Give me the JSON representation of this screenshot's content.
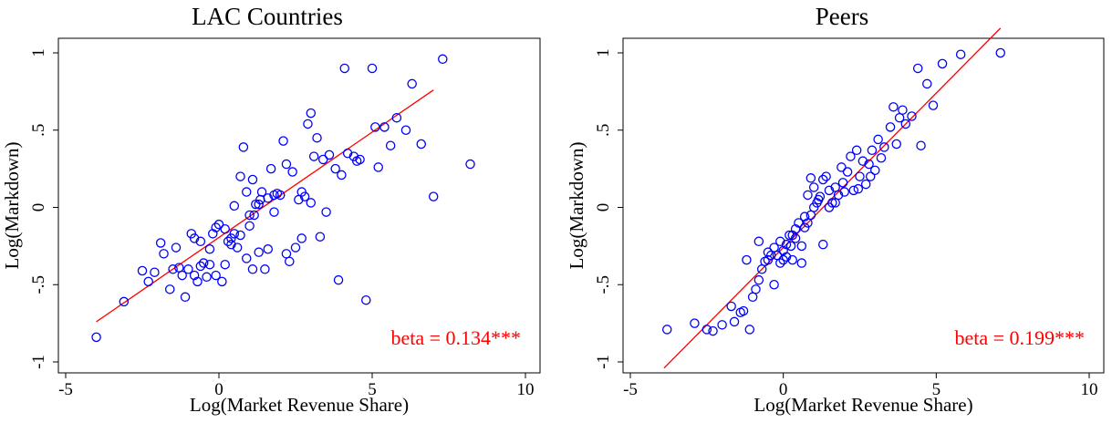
{
  "chart_data": [
    {
      "type": "scatter",
      "title": "LAC Countries",
      "xlabel": "Log(Market Revenue Share)",
      "ylabel": "Log(Markdown)",
      "xlim": [
        -5,
        10
      ],
      "ylim": [
        -1,
        1
      ],
      "xticks": [
        "-5",
        "0",
        "5",
        "10"
      ],
      "yticks": [
        "-1",
        "-.5",
        "0",
        ".5",
        "1"
      ],
      "annotation": "beta = 0.134***",
      "marker_color": "#0000ff",
      "line_color": "#ff0000",
      "fit_line": {
        "x": [
          -4.0,
          7.0
        ],
        "y": [
          -0.74,
          0.76
        ]
      },
      "points": [
        [
          -4.0,
          -0.84
        ],
        [
          -3.1,
          -0.61
        ],
        [
          -2.5,
          -0.41
        ],
        [
          -2.3,
          -0.48
        ],
        [
          -2.1,
          -0.42
        ],
        [
          -1.9,
          -0.23
        ],
        [
          -1.8,
          -0.3
        ],
        [
          -1.6,
          -0.53
        ],
        [
          -1.5,
          -0.4
        ],
        [
          -1.4,
          -0.26
        ],
        [
          -1.3,
          -0.39
        ],
        [
          -1.2,
          -0.44
        ],
        [
          -1.1,
          -0.58
        ],
        [
          -1.0,
          -0.4
        ],
        [
          -0.9,
          -0.17
        ],
        [
          -0.8,
          -0.2
        ],
        [
          -0.8,
          -0.44
        ],
        [
          -0.7,
          -0.48
        ],
        [
          -0.6,
          -0.22
        ],
        [
          -0.6,
          -0.38
        ],
        [
          -0.5,
          -0.36
        ],
        [
          -0.4,
          -0.45
        ],
        [
          -0.3,
          -0.37
        ],
        [
          -0.3,
          -0.27
        ],
        [
          -0.2,
          -0.17
        ],
        [
          -0.1,
          -0.13
        ],
        [
          -0.1,
          -0.44
        ],
        [
          0.0,
          -0.11
        ],
        [
          0.1,
          -0.48
        ],
        [
          0.2,
          -0.14
        ],
        [
          0.2,
          -0.37
        ],
        [
          0.3,
          -0.22
        ],
        [
          0.4,
          -0.24
        ],
        [
          0.4,
          -0.2
        ],
        [
          0.5,
          0.01
        ],
        [
          0.5,
          -0.17
        ],
        [
          0.6,
          -0.26
        ],
        [
          0.7,
          0.2
        ],
        [
          0.7,
          -0.18
        ],
        [
          0.8,
          0.39
        ],
        [
          0.9,
          -0.33
        ],
        [
          0.9,
          0.1
        ],
        [
          1.0,
          -0.05
        ],
        [
          1.0,
          -0.12
        ],
        [
          1.1,
          0.18
        ],
        [
          1.1,
          -0.4
        ],
        [
          1.2,
          0.02
        ],
        [
          1.3,
          -0.29
        ],
        [
          1.3,
          0.02
        ],
        [
          1.4,
          0.1
        ],
        [
          1.5,
          -0.4
        ],
        [
          1.6,
          0.06
        ],
        [
          1.6,
          -0.27
        ],
        [
          1.7,
          0.25
        ],
        [
          1.8,
          -0.03
        ],
        [
          1.8,
          0.08
        ],
        [
          1.9,
          0.09
        ],
        [
          2.0,
          0.08
        ],
        [
          2.1,
          0.43
        ],
        [
          2.2,
          -0.3
        ],
        [
          2.2,
          0.28
        ],
        [
          2.3,
          -0.35
        ],
        [
          2.4,
          0.23
        ],
        [
          2.5,
          -0.26
        ],
        [
          2.6,
          0.05
        ],
        [
          2.7,
          -0.2
        ],
        [
          2.8,
          0.07
        ],
        [
          2.9,
          0.54
        ],
        [
          3.0,
          0.61
        ],
        [
          3.0,
          0.03
        ],
        [
          3.1,
          0.33
        ],
        [
          3.2,
          0.45
        ],
        [
          3.3,
          -0.19
        ],
        [
          3.4,
          0.31
        ],
        [
          3.5,
          -0.03
        ],
        [
          3.6,
          0.34
        ],
        [
          3.8,
          0.25
        ],
        [
          3.9,
          -0.47
        ],
        [
          4.0,
          0.21
        ],
        [
          4.1,
          0.9
        ],
        [
          4.2,
          0.35
        ],
        [
          4.4,
          0.33
        ],
        [
          4.5,
          0.3
        ],
        [
          4.6,
          0.31
        ],
        [
          4.8,
          -0.6
        ],
        [
          5.0,
          0.9
        ],
        [
          5.1,
          0.52
        ],
        [
          5.2,
          0.26
        ],
        [
          5.4,
          0.52
        ],
        [
          5.6,
          0.4
        ],
        [
          5.8,
          0.58
        ],
        [
          6.1,
          0.5
        ],
        [
          6.3,
          0.8
        ],
        [
          6.6,
          0.41
        ],
        [
          7.0,
          0.07
        ],
        [
          7.3,
          0.96
        ],
        [
          8.2,
          0.28
        ],
        [
          1.15,
          -0.05
        ],
        [
          1.35,
          0.05
        ],
        [
          2.7,
          0.1
        ]
      ]
    },
    {
      "type": "scatter",
      "title": "Peers",
      "xlabel": "Log(Market Revenue Share)",
      "ylabel": "Log(Markdown)",
      "xlim": [
        -5,
        10
      ],
      "ylim": [
        -1,
        1
      ],
      "xticks": [
        "-5",
        "0",
        "5",
        "10"
      ],
      "yticks": [
        "-1",
        "-.5",
        "0",
        ".5",
        "1"
      ],
      "annotation": "beta = 0.199***",
      "marker_color": "#0000ff",
      "line_color": "#ff0000",
      "fit_line": {
        "x": [
          -3.9,
          7.1
        ],
        "y": [
          -1.04,
          1.16
        ]
      },
      "points": [
        [
          -3.8,
          -0.79
        ],
        [
          -2.9,
          -0.75
        ],
        [
          -2.5,
          -0.79
        ],
        [
          -2.3,
          -0.8
        ],
        [
          -2.0,
          -0.76
        ],
        [
          -1.7,
          -0.64
        ],
        [
          -1.6,
          -0.74
        ],
        [
          -1.4,
          -0.68
        ],
        [
          -1.3,
          -0.67
        ],
        [
          -1.2,
          -0.34
        ],
        [
          -1.1,
          -0.79
        ],
        [
          -1.0,
          -0.58
        ],
        [
          -0.9,
          -0.53
        ],
        [
          -0.8,
          -0.47
        ],
        [
          -0.8,
          -0.22
        ],
        [
          -0.7,
          -0.4
        ],
        [
          -0.6,
          -0.35
        ],
        [
          -0.5,
          -0.29
        ],
        [
          -0.4,
          -0.31
        ],
        [
          -0.3,
          -0.26
        ],
        [
          -0.3,
          -0.5
        ],
        [
          -0.2,
          -0.31
        ],
        [
          -0.1,
          -0.36
        ],
        [
          -0.1,
          -0.22
        ],
        [
          0.0,
          -0.28
        ],
        [
          0.0,
          -0.34
        ],
        [
          0.1,
          -0.32
        ],
        [
          0.1,
          -0.24
        ],
        [
          0.2,
          -0.18
        ],
        [
          0.3,
          -0.18
        ],
        [
          0.3,
          -0.34
        ],
        [
          0.4,
          -0.2
        ],
        [
          0.4,
          -0.14
        ],
        [
          0.5,
          -0.1
        ],
        [
          0.6,
          -0.25
        ],
        [
          0.6,
          -0.36
        ],
        [
          0.7,
          -0.13
        ],
        [
          0.7,
          -0.06
        ],
        [
          0.8,
          -0.1
        ],
        [
          0.8,
          0.08
        ],
        [
          0.9,
          -0.05
        ],
        [
          0.9,
          0.19
        ],
        [
          1.0,
          0.0
        ],
        [
          1.0,
          0.13
        ],
        [
          1.1,
          0.03
        ],
        [
          1.2,
          0.07
        ],
        [
          1.3,
          0.18
        ],
        [
          1.3,
          -0.24
        ],
        [
          1.4,
          0.2
        ],
        [
          1.5,
          0.0
        ],
        [
          1.5,
          0.11
        ],
        [
          1.6,
          0.03
        ],
        [
          1.7,
          0.03
        ],
        [
          1.7,
          0.13
        ],
        [
          1.8,
          0.08
        ],
        [
          1.9,
          0.26
        ],
        [
          2.0,
          0.1
        ],
        [
          2.1,
          0.23
        ],
        [
          2.2,
          0.33
        ],
        [
          2.3,
          0.11
        ],
        [
          2.4,
          0.37
        ],
        [
          2.5,
          0.2
        ],
        [
          2.6,
          0.3
        ],
        [
          2.7,
          0.15
        ],
        [
          2.8,
          0.28
        ],
        [
          2.9,
          0.37
        ],
        [
          3.0,
          0.24
        ],
        [
          3.1,
          0.44
        ],
        [
          3.2,
          0.32
        ],
        [
          3.3,
          0.39
        ],
        [
          3.5,
          0.52
        ],
        [
          3.6,
          0.65
        ],
        [
          3.7,
          0.41
        ],
        [
          3.8,
          0.58
        ],
        [
          3.9,
          0.63
        ],
        [
          4.0,
          0.54
        ],
        [
          4.2,
          0.59
        ],
        [
          4.4,
          0.9
        ],
        [
          4.5,
          0.4
        ],
        [
          4.7,
          0.8
        ],
        [
          4.9,
          0.66
        ],
        [
          5.2,
          0.93
        ],
        [
          5.8,
          0.99
        ],
        [
          7.1,
          1.0
        ],
        [
          -0.5,
          -0.34
        ],
        [
          0.25,
          -0.25
        ],
        [
          1.15,
          0.05
        ],
        [
          1.95,
          0.16
        ],
        [
          2.45,
          0.12
        ],
        [
          2.85,
          0.2
        ]
      ]
    }
  ]
}
